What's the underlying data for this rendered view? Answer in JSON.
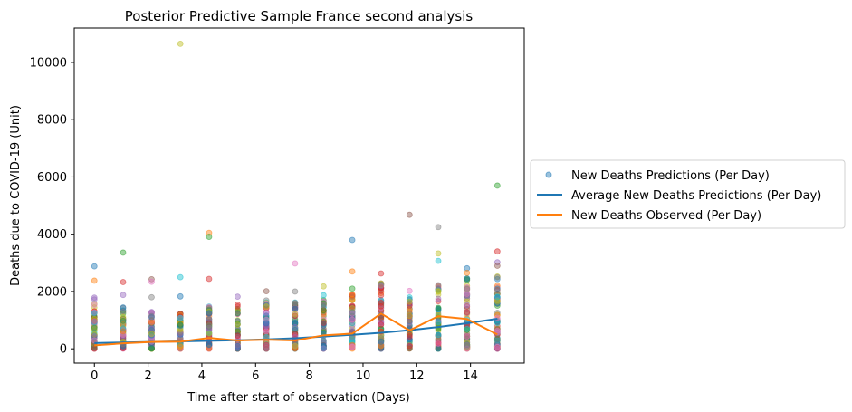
{
  "chart_data": {
    "type": "scatter",
    "title": "Posterior Predictive Sample France second analysis",
    "xlabel": "Time after start of observation (Days)",
    "ylabel": "Deaths due to COVID-19 (Unit)",
    "xlim": [
      -0.75,
      16.0
    ],
    "ylim": [
      -500,
      11200
    ],
    "xticks": [
      0,
      2,
      4,
      6,
      8,
      10,
      12,
      14
    ],
    "yticks": [
      0,
      2000,
      4000,
      6000,
      8000,
      10000
    ],
    "grid": false,
    "legend_position": "outside-right",
    "colors": [
      "#1f77b4",
      "#ff7f0e",
      "#2ca02c",
      "#d62728",
      "#9467bd",
      "#8c564b",
      "#e377c2",
      "#7f7f7f",
      "#bcbd22",
      "#17becf"
    ],
    "x_days": [
      0,
      1.07,
      2.13,
      3.2,
      4.27,
      5.33,
      6.4,
      7.47,
      8.53,
      9.6,
      10.67,
      11.73,
      12.8,
      13.87,
      15.0
    ],
    "series": [
      {
        "name": "New Deaths Predictions (Per Day)",
        "kind": "points",
        "color": "#1f77b4",
        "bands": [
          [
            0,
            1800
          ],
          [
            0,
            1500
          ],
          [
            0,
            1300
          ],
          [
            0,
            1300
          ],
          [
            0,
            1500
          ],
          [
            0,
            1600
          ],
          [
            0,
            1700
          ],
          [
            0,
            1700
          ],
          [
            0,
            1800
          ],
          [
            0,
            1900
          ],
          [
            0,
            2300
          ],
          [
            0,
            1900
          ],
          [
            0,
            2300
          ],
          [
            0,
            2500
          ],
          [
            0,
            2600
          ]
        ],
        "outliers": [
          [
            0,
            2880
          ],
          [
            0,
            2380
          ],
          [
            1.07,
            3360
          ],
          [
            1.07,
            2330
          ],
          [
            1.07,
            1880
          ],
          [
            2.13,
            2430
          ],
          [
            2.13,
            2340
          ],
          [
            2.13,
            1800
          ],
          [
            3.2,
            10650
          ],
          [
            3.2,
            2500
          ],
          [
            3.2,
            1830
          ],
          [
            4.27,
            4050
          ],
          [
            4.27,
            3910
          ],
          [
            4.27,
            2440
          ],
          [
            5.33,
            1820
          ],
          [
            6.4,
            2010
          ],
          [
            7.47,
            2980
          ],
          [
            7.47,
            2000
          ],
          [
            8.53,
            2180
          ],
          [
            8.53,
            1870
          ],
          [
            9.6,
            3800
          ],
          [
            9.6,
            2700
          ],
          [
            9.6,
            2100
          ],
          [
            10.67,
            2630
          ],
          [
            10.67,
            2200
          ],
          [
            11.73,
            4680
          ],
          [
            11.73,
            2020
          ],
          [
            12.8,
            4250
          ],
          [
            12.8,
            3330
          ],
          [
            12.8,
            3070
          ],
          [
            13.87,
            2810
          ],
          [
            13.87,
            2650
          ],
          [
            15.0,
            5700
          ],
          [
            15.0,
            3400
          ],
          [
            15.0,
            3020
          ],
          [
            15.0,
            2900
          ]
        ]
      },
      {
        "name": "Average New Deaths Predictions (Per Day)",
        "kind": "line",
        "color": "#1f77b4",
        "values": [
          200,
          220,
          240,
          260,
          280,
          300,
          330,
          370,
          430,
          490,
          560,
          650,
          760,
          890,
          1050
        ]
      },
      {
        "name": "New Deaths Observed (Per Day)",
        "kind": "line",
        "color": "#ff7f0e",
        "values": [
          120,
          190,
          240,
          250,
          380,
          290,
          320,
          290,
          470,
          530,
          1230,
          640,
          1140,
          1040,
          500
        ]
      }
    ]
  }
}
